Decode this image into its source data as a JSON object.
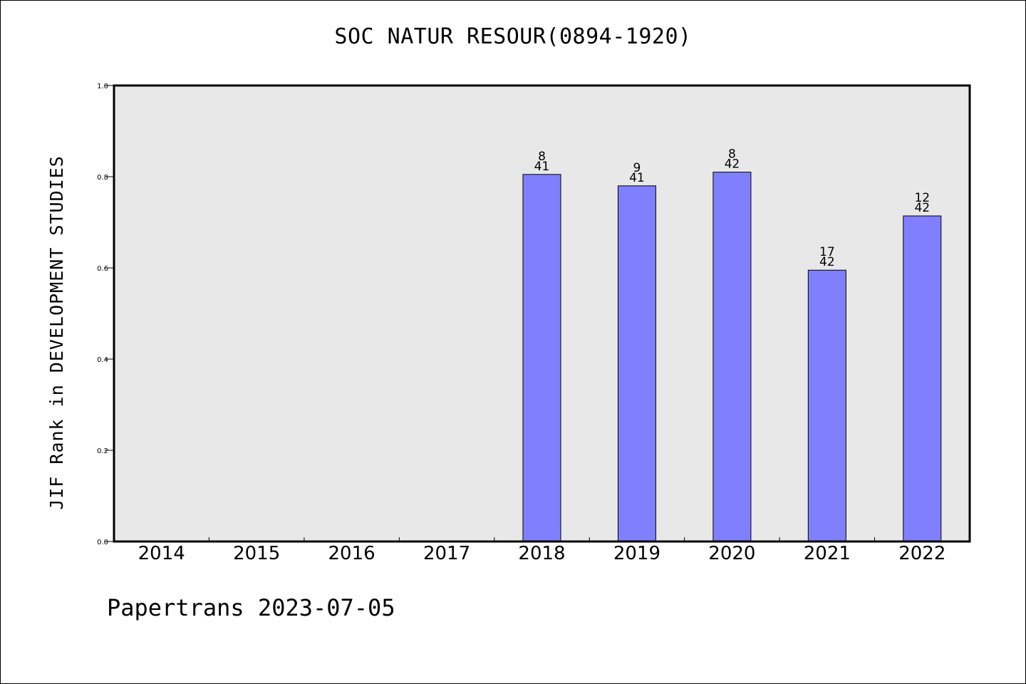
{
  "chart_data": {
    "type": "bar",
    "title": "SOC NATUR RESOUR(0894-1920)",
    "ylabel": "JIF Rank in DEVELOPMENT STUDIES",
    "xlabel": "",
    "ylim": [
      0,
      1.0
    ],
    "yticks": [
      "0.0",
      "0.2",
      "0.4",
      "0.6",
      "0.8",
      "1.0"
    ],
    "categories": [
      "2014",
      "2015",
      "2016",
      "2017",
      "2018",
      "2019",
      "2020",
      "2021",
      "2022"
    ],
    "values": [
      null,
      null,
      null,
      null,
      0.805,
      0.78,
      0.81,
      0.595,
      0.714
    ],
    "rank": [
      null,
      null,
      null,
      null,
      "8",
      "9",
      "8",
      "17",
      "12"
    ],
    "total": [
      null,
      null,
      null,
      null,
      "41",
      "41",
      "42",
      "42",
      "42"
    ],
    "bar_color": "#8080ff",
    "plot_background": "#e8e8e8",
    "grid": false
  },
  "footer": {
    "credit": "Papertrans 2023-07-05"
  }
}
